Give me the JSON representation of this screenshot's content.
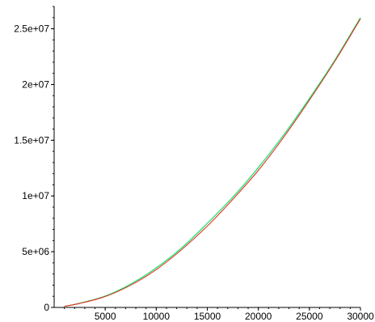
{
  "chart_data": {
    "type": "line",
    "title": "",
    "xlabel": "",
    "ylabel": "",
    "xlim": [
      0,
      30000
    ],
    "ylim": [
      0,
      27000000
    ],
    "grid": false,
    "legend": "none",
    "x_ticks": [
      {
        "value": 5000,
        "label": "5000"
      },
      {
        "value": 10000,
        "label": "10000"
      },
      {
        "value": 15000,
        "label": "15000"
      },
      {
        "value": 20000,
        "label": "20000"
      },
      {
        "value": 25000,
        "label": "25000"
      },
      {
        "value": 30000,
        "label": "30000"
      }
    ],
    "y_ticks": [
      {
        "value": 0,
        "label": "0"
      },
      {
        "value": 5000000,
        "label": "5e+06"
      },
      {
        "value": 10000000,
        "label": "1e+07"
      },
      {
        "value": 15000000,
        "label": "1.5e+07"
      },
      {
        "value": 20000000,
        "label": "2e+07"
      },
      {
        "value": 25000000,
        "label": "2.5e+07"
      }
    ],
    "x_minor_step": 1000,
    "y_minor_step": 1000000,
    "series": [
      {
        "color": "#00e060",
        "x": [
          1000,
          2500,
          5000,
          7500,
          10000,
          12500,
          15000,
          17500,
          20000,
          22500,
          25000,
          27500,
          30000
        ],
        "y": [
          100000,
          380000,
          1020000,
          2100000,
          3550000,
          5350000,
          7550000,
          9900000,
          12550000,
          15500000,
          18750000,
          22200000,
          26000000
        ]
      },
      {
        "color": "#e03020",
        "x": [
          1000,
          2500,
          5000,
          7500,
          10000,
          12500,
          15000,
          17500,
          20000,
          22500,
          25000,
          27500,
          30000
        ],
        "y": [
          100000,
          360000,
          980000,
          2000000,
          3400000,
          5200000,
          7300000,
          9700000,
          12300000,
          15300000,
          18600000,
          22100000,
          25900000
        ]
      }
    ]
  }
}
